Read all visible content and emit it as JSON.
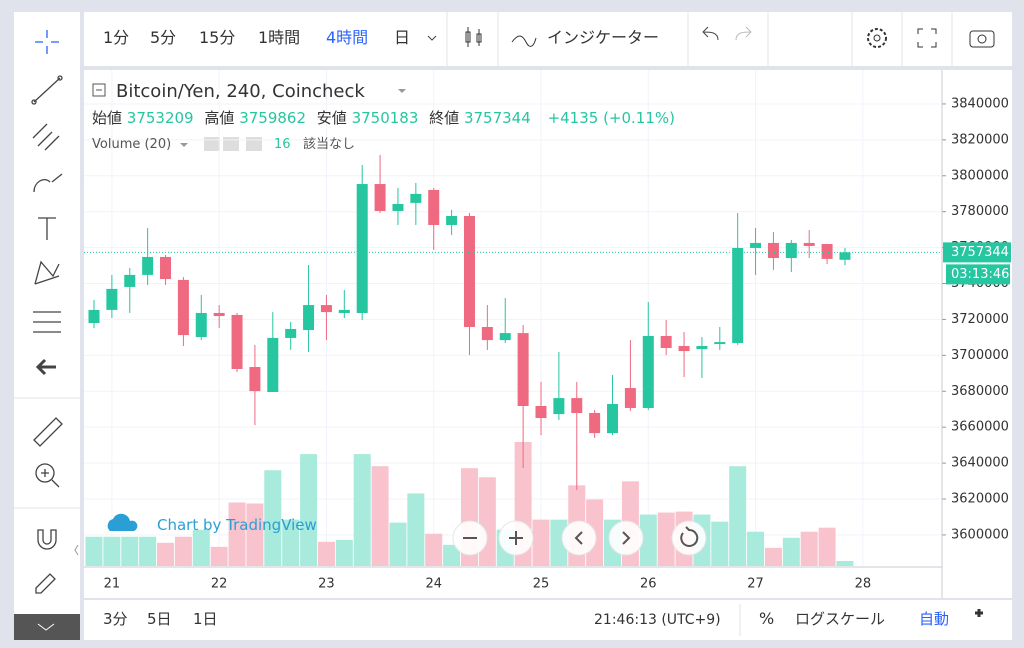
{
  "toolbar": {
    "intervals": [
      "1分",
      "5分",
      "15分",
      "1時間",
      "4時間",
      "日"
    ],
    "indicators": "インジケーター"
  },
  "chart_data": {
    "type": "candlestick",
    "title": "Bitcoin/Yen, 240, Coincheck",
    "legend_labels": [
      "始値",
      "高値",
      "安値",
      "終値"
    ],
    "change": "+4135 (+0.11%)",
    "volume_label": "Volume (20)",
    "volume_study_length": 16,
    "volume_study_value": "該当なし",
    "watermark": "Chart by TradingView",
    "countdown": "03:13:46",
    "categories": [
      null,
      "21",
      null,
      null,
      null,
      null,
      null,
      "22",
      null,
      null,
      null,
      null,
      null,
      "23",
      null,
      null,
      null,
      null,
      null,
      "24",
      null,
      null,
      null,
      null,
      null,
      "25",
      null,
      null,
      null,
      null,
      null,
      "26",
      null,
      null,
      null,
      null,
      null,
      "27",
      null,
      null,
      null,
      null,
      null,
      "28"
    ],
    "open": [
      3718000,
      3725300,
      3738100,
      3744800,
      3754800,
      3742000,
      3710200,
      3723600,
      3722500,
      3693500,
      3679600,
      3709700,
      3714100,
      3728000,
      3723600,
      3723600,
      3795400,
      3780400,
      3784900,
      3792100,
      3772600,
      3777600,
      3715800,
      3708500,
      3712400,
      3671800,
      3667300,
      3676200,
      3667900,
      3656700,
      3681800,
      3670700,
      3710800,
      3705200,
      3703500,
      3706300,
      3706900,
      3759800,
      3762600,
      3754200,
      3762600,
      3762000,
      3753209,
      null
    ],
    "high": [
      3730800,
      3744800,
      3748700,
      3770900,
      3755900,
      3743600,
      3733600,
      3728000,
      3723600,
      3705800,
      3724100,
      3718600,
      3750300,
      3733600,
      3736400,
      3806000,
      3811600,
      3793200,
      3796000,
      3793200,
      3781000,
      3779300,
      3728000,
      3731900,
      3716900,
      3685200,
      3701900,
      3685200,
      3669600,
      3689100,
      3708500,
      3729700,
      3719700,
      3713000,
      3710200,
      3715800,
      3779300,
      3770900,
      3768700,
      3764200,
      3769800,
      3762000,
      3759862,
      null
    ],
    "low": [
      3715200,
      3720800,
      3723600,
      3739200,
      3739200,
      3705200,
      3708500,
      3715200,
      3690700,
      3661200,
      3679600,
      3703000,
      3701900,
      3708500,
      3720800,
      3719700,
      3779300,
      3772600,
      3772600,
      3758700,
      3767000,
      3700200,
      3703000,
      3706900,
      3637300,
      3655600,
      3664000,
      3625000,
      3654000,
      3655600,
      3669000,
      3669600,
      3700200,
      3687900,
      3687400,
      3703000,
      3705800,
      3744800,
      3747500,
      3746400,
      3754200,
      3750900,
      3750183,
      null
    ],
    "close": [
      3725300,
      3737000,
      3744800,
      3754800,
      3742500,
      3711300,
      3723600,
      3721900,
      3692400,
      3680100,
      3709700,
      3714700,
      3728000,
      3724100,
      3725300,
      3795400,
      3780400,
      3784300,
      3789900,
      3772600,
      3777600,
      3715800,
      3708500,
      3712400,
      3671800,
      3665100,
      3676200,
      3667900,
      3656700,
      3672900,
      3670700,
      3710800,
      3704100,
      3702400,
      3705200,
      3707400,
      3759800,
      3762600,
      3754200,
      3762600,
      3760900,
      3753700,
      3757344,
      null
    ],
    "volume": [
      29,
      29,
      29,
      29,
      23,
      29,
      36,
      19,
      63,
      62,
      95,
      46,
      111,
      24,
      26,
      111,
      99,
      43,
      72,
      32,
      21,
      97,
      88,
      36,
      123,
      46,
      46,
      80,
      66,
      46,
      84,
      51,
      53,
      54,
      51,
      44,
      99,
      34,
      18,
      28,
      34,
      38,
      5,
      null
    ],
    "up_color": "#26c6a0",
    "down_color": "#ef6a80",
    "volume_up_color": "#a8eadb",
    "volume_down_color": "#f9c3cd",
    "ylim": [
      3582700,
      3858900
    ],
    "yticks": [
      3600000,
      3620000,
      3640000,
      3660000,
      3680000,
      3700000,
      3720000,
      3740000,
      3760000,
      3780000,
      3800000,
      3820000,
      3840000
    ],
    "grid": true
  },
  "bottom_bar": {
    "ranges": [
      "3分",
      "5日",
      "1日"
    ],
    "clock": "21:46:13 (UTC+9)",
    "percent": "%",
    "log_scale": "ログスケール",
    "auto": "自動"
  }
}
